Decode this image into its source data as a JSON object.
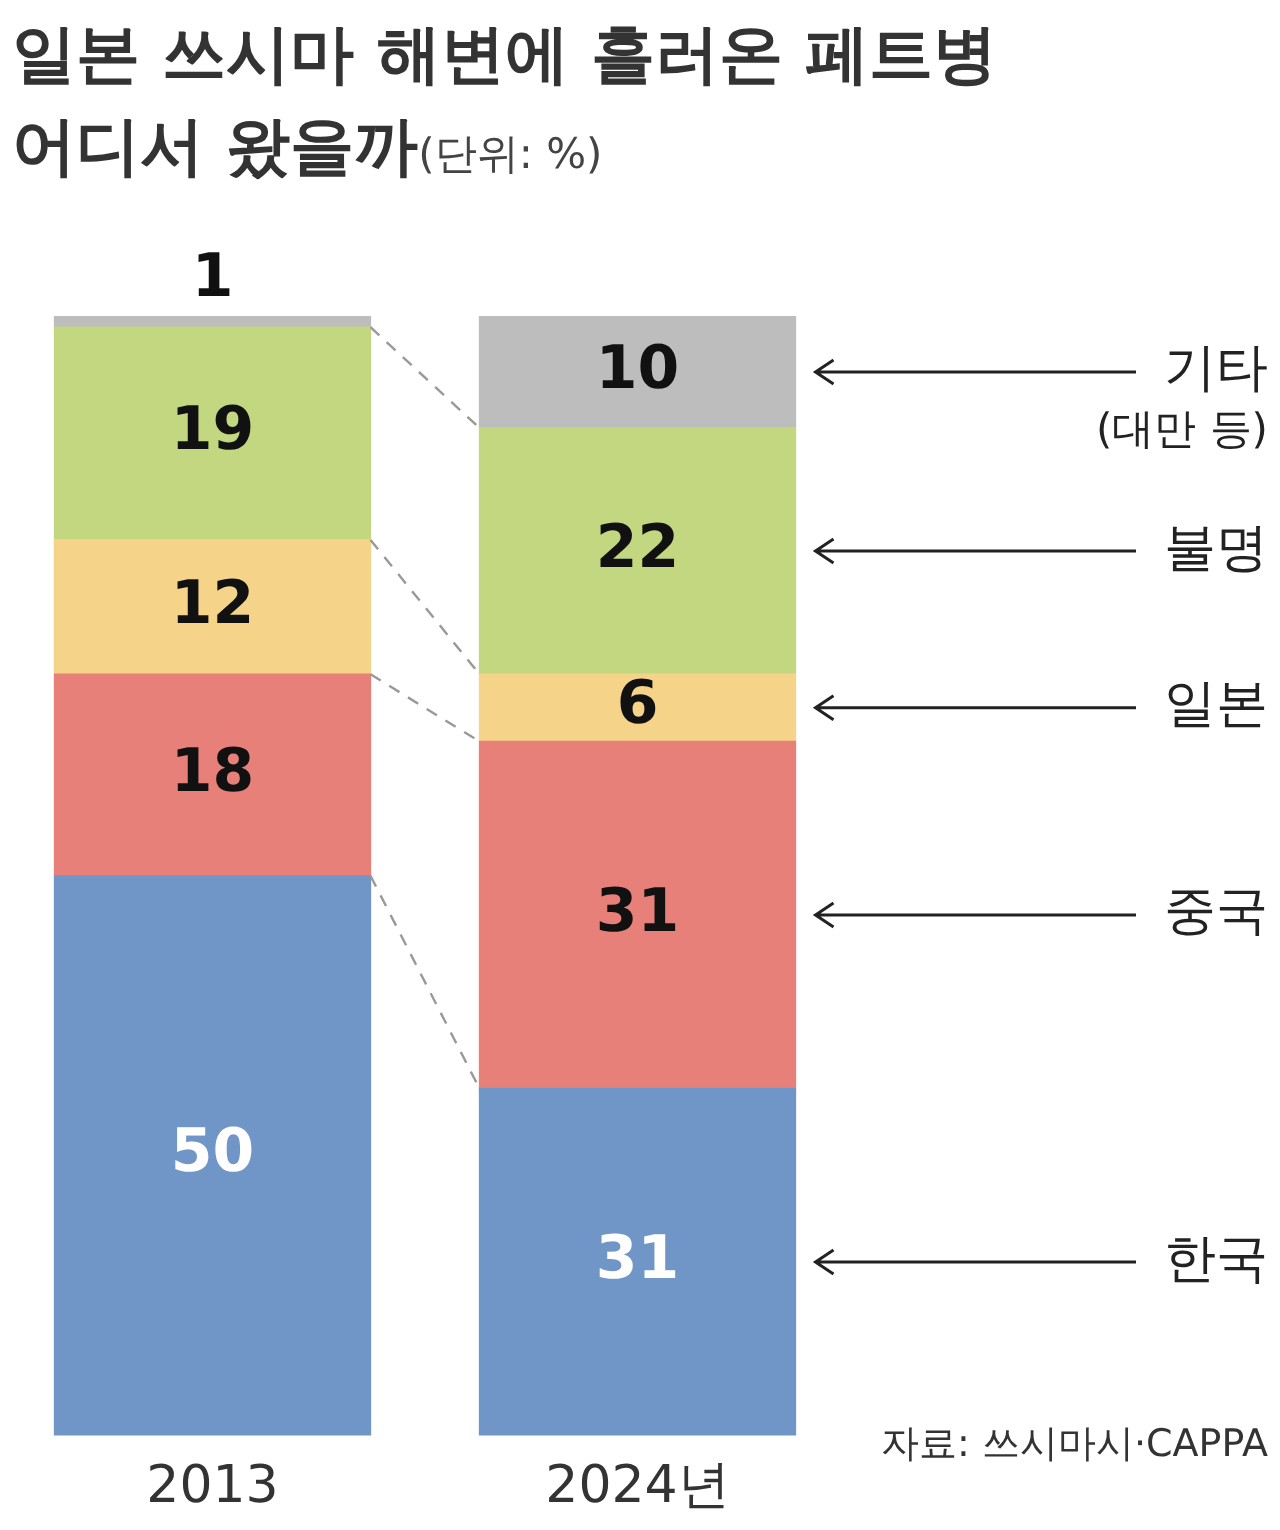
{
  "chart_data": {
    "type": "bar",
    "title": "일본 쓰시마 해변에 흘러온 페트병 어디서 왔을까",
    "subtitle": "(단위: %)",
    "stacked": true,
    "data_labels": true,
    "categories": [
      "2013",
      "2024년"
    ],
    "series": [
      {
        "name": "한국",
        "color": "#7096c8",
        "values": [
          50,
          31
        ]
      },
      {
        "name": "중국",
        "color": "#e8807a",
        "values": [
          18,
          31
        ]
      },
      {
        "name": "일본",
        "color": "#f5d48a",
        "values": [
          12,
          6
        ]
      },
      {
        "name": "불명",
        "color": "#c3d680",
        "values": [
          19,
          22
        ]
      },
      {
        "name": "기타 (대만 등)",
        "color": "#bdbdbd",
        "values": [
          1,
          10
        ]
      }
    ],
    "annotations": [
      "자료: 쓰시마시·CAPPA"
    ]
  }
}
